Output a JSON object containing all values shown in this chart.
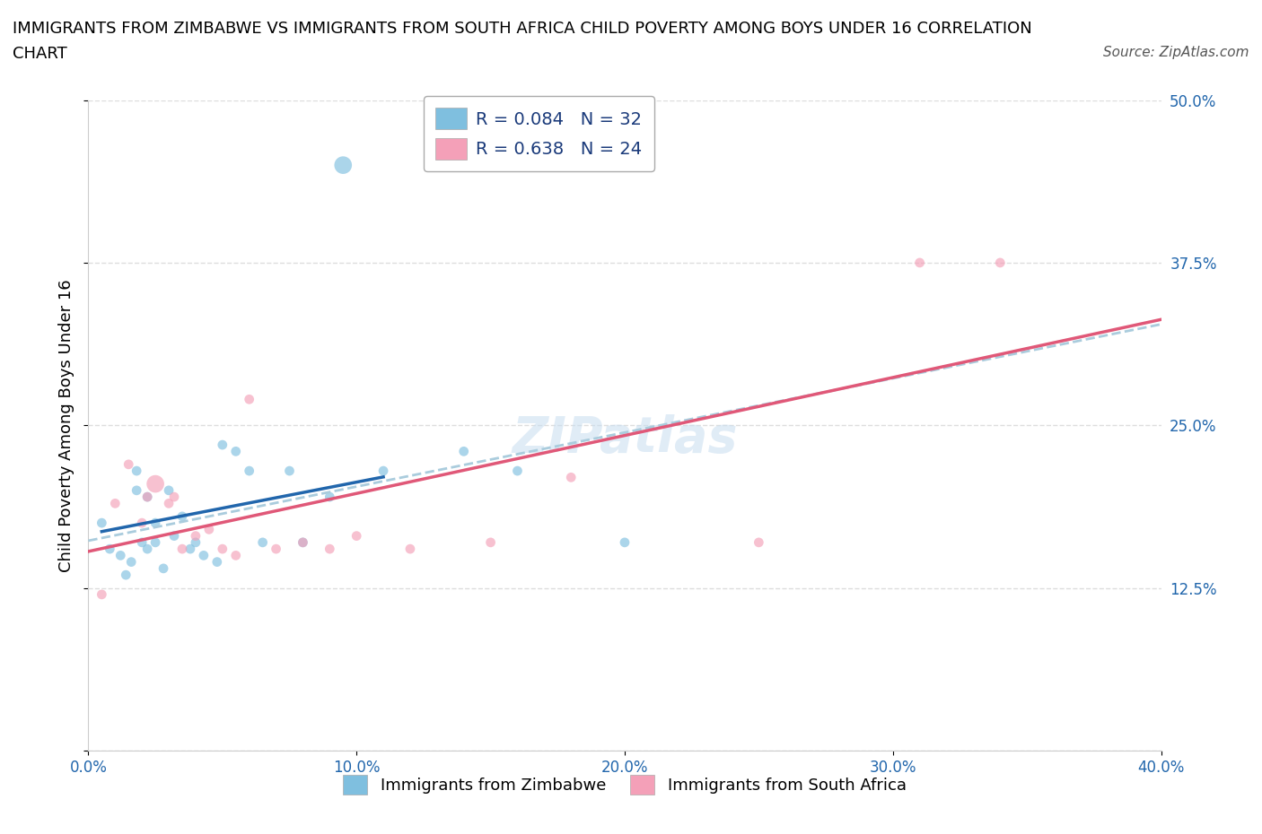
{
  "title_line1": "IMMIGRANTS FROM ZIMBABWE VS IMMIGRANTS FROM SOUTH AFRICA CHILD POVERTY AMONG BOYS UNDER 16 CORRELATION",
  "title_line2": "CHART",
  "source": "Source: ZipAtlas.com",
  "ylabel": "Child Poverty Among Boys Under 16",
  "legend1_label": "R = 0.084   N = 32",
  "legend2_label": "R = 0.638   N = 24",
  "legend_bottom1": "Immigrants from Zimbabwe",
  "legend_bottom2": "Immigrants from South Africa",
  "color_blue": "#7fbfdf",
  "color_pink": "#f4a0b8",
  "color_blue_line": "#2166ac",
  "color_pink_line": "#e05878",
  "color_dashed_line": "#aaccdd",
  "color_legend_text": "#1a3a7a",
  "color_tick": "#2166ac",
  "xlim": [
    0.0,
    0.4
  ],
  "ylim": [
    0.0,
    0.5
  ],
  "xticks": [
    0.0,
    0.1,
    0.2,
    0.3,
    0.4
  ],
  "yticks": [
    0.0,
    0.125,
    0.25,
    0.375,
    0.5
  ],
  "xtick_labels": [
    "0.0%",
    "10.0%",
    "20.0%",
    "30.0%",
    "40.0%"
  ],
  "ytick_labels_right": [
    "",
    "12.5%",
    "25.0%",
    "37.5%",
    "50.0%"
  ],
  "grid_color": "#dddddd",
  "background_color": "#ffffff",
  "watermark": "ZIPatlas",
  "blue_x": [
    0.005,
    0.008,
    0.012,
    0.014,
    0.016,
    0.018,
    0.018,
    0.02,
    0.022,
    0.022,
    0.025,
    0.025,
    0.028,
    0.03,
    0.032,
    0.035,
    0.038,
    0.04,
    0.043,
    0.048,
    0.05,
    0.055,
    0.06,
    0.065,
    0.075,
    0.08,
    0.09,
    0.095,
    0.11,
    0.14,
    0.16,
    0.2
  ],
  "blue_y": [
    0.175,
    0.155,
    0.15,
    0.135,
    0.145,
    0.2,
    0.215,
    0.16,
    0.155,
    0.195,
    0.16,
    0.175,
    0.14,
    0.2,
    0.165,
    0.18,
    0.155,
    0.16,
    0.15,
    0.145,
    0.235,
    0.23,
    0.215,
    0.16,
    0.215,
    0.16,
    0.195,
    0.45,
    0.215,
    0.23,
    0.215,
    0.16
  ],
  "blue_sizes": [
    60,
    60,
    60,
    60,
    60,
    60,
    60,
    60,
    60,
    60,
    60,
    60,
    60,
    60,
    60,
    60,
    60,
    60,
    60,
    60,
    60,
    60,
    60,
    60,
    60,
    60,
    60,
    200,
    60,
    60,
    60,
    60
  ],
  "pink_x": [
    0.005,
    0.01,
    0.015,
    0.02,
    0.022,
    0.025,
    0.03,
    0.032,
    0.035,
    0.04,
    0.045,
    0.05,
    0.055,
    0.06,
    0.07,
    0.08,
    0.09,
    0.1,
    0.12,
    0.15,
    0.18,
    0.25,
    0.31,
    0.34
  ],
  "pink_y": [
    0.12,
    0.19,
    0.22,
    0.175,
    0.195,
    0.205,
    0.19,
    0.195,
    0.155,
    0.165,
    0.17,
    0.155,
    0.15,
    0.27,
    0.155,
    0.16,
    0.155,
    0.165,
    0.155,
    0.16,
    0.21,
    0.16,
    0.375,
    0.375
  ],
  "pink_sizes": [
    60,
    60,
    60,
    60,
    60,
    200,
    60,
    60,
    60,
    60,
    60,
    60,
    60,
    60,
    60,
    60,
    60,
    60,
    60,
    60,
    60,
    60,
    60,
    60
  ],
  "title_fontsize": 13,
  "source_fontsize": 11,
  "tick_fontsize": 12,
  "ylabel_fontsize": 13,
  "legend_fontsize": 14,
  "watermark_fontsize": 40
}
